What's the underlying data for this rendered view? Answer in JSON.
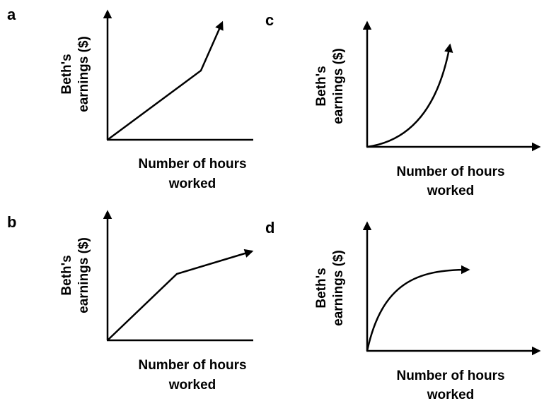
{
  "panels": [
    {
      "label": "a",
      "y_label": [
        "Beth's",
        "earnings ($)"
      ],
      "x_label": [
        "Number of hours",
        "worked"
      ]
    },
    {
      "label": "b",
      "y_label": [
        "Beth's",
        "earnings ($)"
      ],
      "x_label": [
        "Number of hours",
        "worked"
      ]
    },
    {
      "label": "c",
      "y_label": [
        "Beth's",
        "earnings ($)"
      ],
      "x_label": [
        "Number of hours",
        "worked"
      ]
    },
    {
      "label": "d",
      "y_label": [
        "Beth's",
        "earnings ($)"
      ],
      "x_label": [
        "Number of hours",
        "worked"
      ]
    }
  ]
}
